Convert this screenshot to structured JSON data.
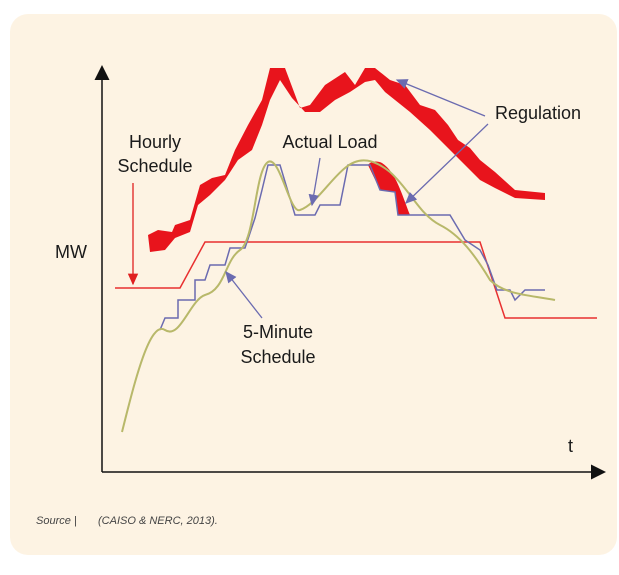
{
  "axis": {
    "y_label": "MW",
    "x_label": "t"
  },
  "labels": {
    "hourly_schedule": [
      "Hourly",
      "Schedule"
    ],
    "actual_load": "Actual Load",
    "regulation": "Regulation",
    "five_minute_schedule": [
      "5-Minute",
      "Schedule"
    ]
  },
  "source": {
    "label": "Source |",
    "citation": "(CAISO & NERC, 2013)."
  }
}
